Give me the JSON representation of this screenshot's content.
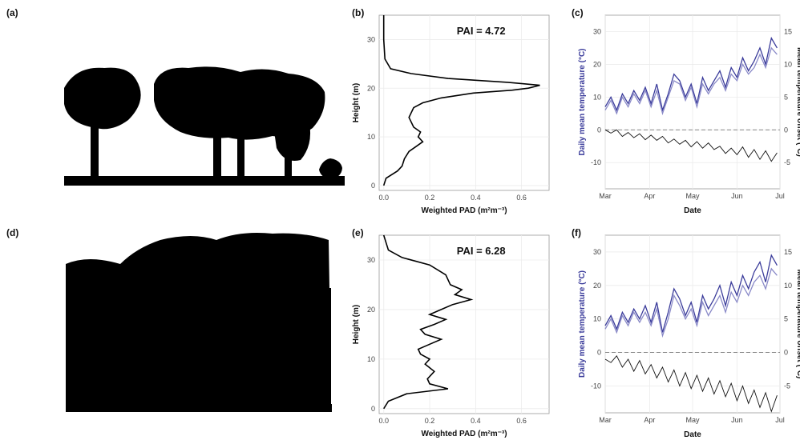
{
  "panels": {
    "a": "(a)",
    "b": "(b)",
    "c": "(c)",
    "d": "(d)",
    "e": "(e)",
    "f": "(f)"
  },
  "colors": {
    "temperature": "#3a3b9a",
    "temperature_light": "#8a8ac8",
    "offset": "#111111",
    "grid": "#ebebeb",
    "silhouette": "#000000"
  },
  "chart_data": [
    {
      "id": "b",
      "type": "line",
      "xlabel": "Weighted PAD (m²m⁻³)",
      "ylabel": "Height (m)",
      "annotation": "PAI = 4.72",
      "xlim": [
        -0.02,
        0.72
      ],
      "ylim": [
        -1,
        35
      ],
      "x_ticks": [
        "0.0",
        "0.2",
        "0.4",
        "0.6"
      ],
      "y_ticks": [
        "0",
        "10",
        "20",
        "30"
      ],
      "series": [
        {
          "x": [
            0.0,
            0.01,
            0.06,
            0.08,
            0.09,
            0.11,
            0.14,
            0.17,
            0.15,
            0.16,
            0.13,
            0.12,
            0.11,
            0.12,
            0.13,
            0.17,
            0.25,
            0.39,
            0.56,
            0.63,
            0.68,
            0.54,
            0.28,
            0.12,
            0.03,
            0.005,
            0.0,
            0.0
          ],
          "y": [
            0,
            1.5,
            3,
            4,
            5.5,
            7,
            8,
            9,
            10,
            11,
            12,
            13,
            14,
            15,
            16,
            17,
            18,
            19,
            19.6,
            20,
            20.6,
            21.2,
            22,
            23,
            24,
            26,
            30,
            35
          ]
        }
      ]
    },
    {
      "id": "c",
      "type": "line",
      "xlabel": "Date",
      "ylabel": "Daily mean temperature (°C)",
      "ylabel_right": "Mean temperature offset (°C)",
      "x_ticks": [
        "Mar",
        "Apr",
        "May",
        "Jun",
        "Jul"
      ],
      "y_ticks": [
        "-10",
        "0",
        "10",
        "20",
        "30"
      ],
      "y_ticks_right": [
        "-5",
        "0",
        "5",
        "10",
        "15"
      ],
      "ylim": [
        -18,
        35
      ],
      "x_range_days": [
        0,
        122
      ],
      "offset_to_left_axis": "left = 2 × right",
      "series": [
        {
          "name": "",
          "color_key": "temperature",
          "x": [
            0,
            4,
            8,
            12,
            16,
            20,
            24,
            28,
            32,
            36,
            40,
            44,
            48,
            52,
            56,
            60,
            64,
            68,
            72,
            76,
            80,
            84,
            88,
            92,
            96,
            100,
            104,
            108,
            112,
            116,
            120
          ],
          "y": [
            7,
            10,
            6,
            11,
            8,
            12,
            9,
            13,
            8,
            14,
            6,
            11,
            17,
            15,
            10,
            14,
            8,
            16,
            12,
            15,
            18,
            13,
            19,
            16,
            22,
            18,
            21,
            25,
            20,
            28,
            25
          ]
        },
        {
          "name": "",
          "color_key": "temperature_light",
          "x": [
            0,
            4,
            8,
            12,
            16,
            20,
            24,
            28,
            32,
            36,
            40,
            44,
            48,
            52,
            56,
            60,
            64,
            68,
            72,
            76,
            80,
            84,
            88,
            92,
            96,
            100,
            104,
            108,
            112,
            116,
            120
          ],
          "y": [
            6,
            9,
            5,
            10,
            7,
            11,
            8,
            12,
            7,
            12,
            5,
            10,
            15,
            14,
            9,
            13,
            7,
            14,
            11,
            14,
            16,
            12,
            17,
            15,
            20,
            17,
            19,
            23,
            19,
            25,
            23
          ]
        },
        {
          "name": "",
          "color_key": "offset",
          "x": [
            0,
            4,
            8,
            12,
            16,
            20,
            24,
            28,
            32,
            36,
            40,
            44,
            48,
            52,
            56,
            60,
            64,
            68,
            72,
            76,
            80,
            84,
            88,
            92,
            96,
            100,
            104,
            108,
            112,
            116,
            120
          ],
          "y": [
            0,
            -0.5,
            0,
            -1,
            -0.4,
            -1.2,
            -0.6,
            -1.5,
            -0.8,
            -1.6,
            -1.0,
            -2.0,
            -1.4,
            -2.2,
            -1.6,
            -2.6,
            -1.8,
            -2.8,
            -2.0,
            -3.0,
            -2.5,
            -3.6,
            -2.8,
            -3.8,
            -2.6,
            -4.2,
            -3.0,
            -4.5,
            -3.2,
            -4.8,
            -3.5
          ]
        }
      ]
    },
    {
      "id": "e",
      "type": "line",
      "xlabel": "Weighted PAD (m²m⁻³)",
      "ylabel": "Height (m)",
      "annotation": "PAI = 6.28",
      "xlim": [
        -0.02,
        0.72
      ],
      "ylim": [
        -1,
        35
      ],
      "x_ticks": [
        "0.0",
        "0.2",
        "0.4",
        "0.6"
      ],
      "y_ticks": [
        "0",
        "10",
        "20",
        "30"
      ],
      "series": [
        {
          "x": [
            0.0,
            0.02,
            0.1,
            0.28,
            0.2,
            0.19,
            0.22,
            0.18,
            0.2,
            0.16,
            0.15,
            0.2,
            0.25,
            0.18,
            0.16,
            0.22,
            0.27,
            0.2,
            0.25,
            0.3,
            0.38,
            0.31,
            0.34,
            0.29,
            0.27,
            0.2,
            0.08,
            0.02,
            0.0
          ],
          "y": [
            0,
            1.5,
            3,
            4,
            5,
            6,
            7.5,
            9,
            10,
            11,
            12,
            13,
            14,
            15,
            16,
            17,
            18,
            19,
            20,
            21,
            22,
            23,
            24,
            25,
            27,
            29,
            30.5,
            32,
            35
          ]
        }
      ]
    },
    {
      "id": "f",
      "type": "line",
      "xlabel": "Date",
      "ylabel": "Daily mean temperature (°C)",
      "ylabel_right": "Mean temperature offset (°C)",
      "x_ticks": [
        "Mar",
        "Apr",
        "May",
        "Jun",
        "Jul"
      ],
      "y_ticks": [
        "-10",
        "0",
        "10",
        "20",
        "30"
      ],
      "y_ticks_right": [
        "-5",
        "0",
        "5",
        "10",
        "15"
      ],
      "ylim": [
        -18,
        35
      ],
      "x_range_days": [
        0,
        122
      ],
      "offset_to_left_axis": "left = 2 × right",
      "series": [
        {
          "name": "",
          "color_key": "temperature",
          "x": [
            0,
            4,
            8,
            12,
            16,
            20,
            24,
            28,
            32,
            36,
            40,
            44,
            48,
            52,
            56,
            60,
            64,
            68,
            72,
            76,
            80,
            84,
            88,
            92,
            96,
            100,
            104,
            108,
            112,
            116,
            120
          ],
          "y": [
            8,
            11,
            7,
            12,
            9,
            13,
            10,
            14,
            9,
            15,
            6,
            12,
            19,
            16,
            11,
            15,
            9,
            17,
            13,
            16,
            20,
            14,
            21,
            17,
            23,
            19,
            24,
            27,
            21,
            29,
            26
          ]
        },
        {
          "name": "",
          "color_key": "temperature_light",
          "x": [
            0,
            4,
            8,
            12,
            16,
            20,
            24,
            28,
            32,
            36,
            40,
            44,
            48,
            52,
            56,
            60,
            64,
            68,
            72,
            76,
            80,
            84,
            88,
            92,
            96,
            100,
            104,
            108,
            112,
            116,
            120
          ],
          "y": [
            7,
            10,
            6,
            11,
            8,
            12,
            9,
            12,
            8,
            13,
            5,
            10,
            17,
            14,
            10,
            13,
            8,
            15,
            11,
            14,
            17,
            12,
            18,
            15,
            20,
            17,
            21,
            23,
            19,
            25,
            23
          ]
        },
        {
          "name": "",
          "color_key": "offset",
          "x": [
            0,
            4,
            8,
            12,
            16,
            20,
            24,
            28,
            32,
            36,
            40,
            44,
            48,
            52,
            56,
            60,
            64,
            68,
            72,
            76,
            80,
            84,
            88,
            92,
            96,
            100,
            104,
            108,
            112,
            116,
            120
          ],
          "y": [
            -1,
            -1.5,
            -0.5,
            -2.2,
            -1,
            -2.8,
            -1.2,
            -3.2,
            -1.8,
            -3.8,
            -2.2,
            -4.4,
            -2.6,
            -5,
            -3,
            -5.4,
            -3.4,
            -5.8,
            -3.8,
            -6.2,
            -4.2,
            -6.6,
            -4.6,
            -7.2,
            -5,
            -7.6,
            -5.6,
            -8.2,
            -6,
            -8.8,
            -6.4
          ]
        }
      ]
    }
  ]
}
